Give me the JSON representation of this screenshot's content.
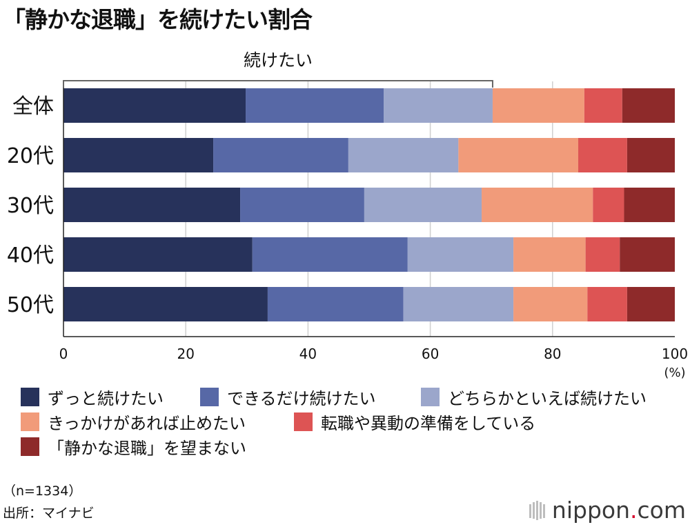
{
  "chart_data": {
    "type": "bar",
    "orientation": "horizontal",
    "stacked": true,
    "title": "「静かな退職」を続けたい割合",
    "bracket_label": "続けたい",
    "bracket_range": [
      0,
      70.2
    ],
    "categories": [
      "全体",
      "20代",
      "30代",
      "40代",
      "50代"
    ],
    "series": [
      {
        "name": "ずっと続けたい",
        "color": "#27325b",
        "values": [
          29.8,
          24.5,
          28.9,
          30.9,
          33.4
        ]
      },
      {
        "name": "できるだけ続けたい",
        "color": "#5768a6",
        "values": [
          22.6,
          22.1,
          20.3,
          25.4,
          22.2
        ]
      },
      {
        "name": "どちらかといえば続けたい",
        "color": "#9ba6cb",
        "values": [
          17.8,
          18.0,
          19.2,
          17.3,
          18.0
        ]
      },
      {
        "name": "きっかけがあれば止めたい",
        "color": "#f19b7a",
        "values": [
          15.0,
          19.6,
          18.2,
          11.8,
          12.1
        ]
      },
      {
        "name": "転職や異動の準備をしている",
        "color": "#dd5454",
        "values": [
          6.2,
          8.0,
          5.1,
          5.6,
          6.5
        ]
      },
      {
        "name": "「静かな退職」を望まない",
        "color": "#8e2a2a",
        "values": [
          8.6,
          7.8,
          8.3,
          9.0,
          7.8
        ]
      }
    ],
    "x_ticks": [
      "0",
      "20",
      "40",
      "60",
      "80",
      "100"
    ],
    "xlim": [
      0,
      100
    ],
    "x_unit": "(%)",
    "grid": true,
    "legend_position": "bottom"
  },
  "notes": {
    "sample": "（n=1334）",
    "source": "出所：マイナビ"
  },
  "brand": {
    "main": "nippon",
    "dot": ".",
    "tld": "com"
  }
}
